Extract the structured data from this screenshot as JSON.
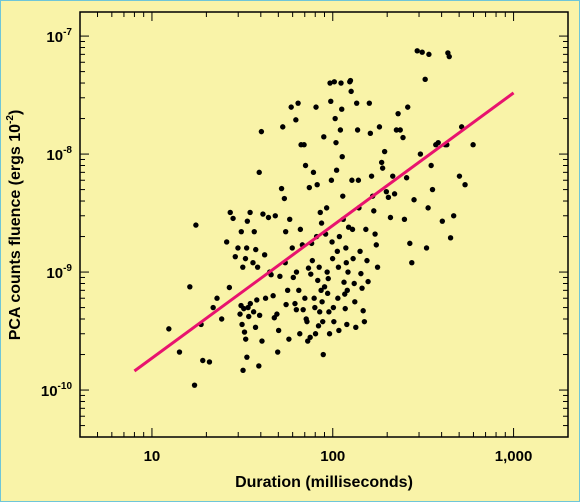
{
  "chart_data": {
    "type": "scatter",
    "x_scale": "log",
    "y_scale": "log",
    "xlim": [
      4,
      2000
    ],
    "ylim": [
      4e-11,
      1.6e-07
    ],
    "xlabel": "Duration (milliseconds)",
    "ylabel_main": "PCA counts fluence (ergs 10",
    "ylabel_sup": "-2",
    "ylabel_tail": ")",
    "x_ticks": [
      {
        "value": 10,
        "label": "10"
      },
      {
        "value": 100,
        "label": "100"
      },
      {
        "value": 1000,
        "label": "1,000"
      }
    ],
    "y_ticks": [
      {
        "value": 1e-10,
        "base": "10",
        "exp": "-10"
      },
      {
        "value": 1e-09,
        "base": "10",
        "exp": "-9"
      },
      {
        "value": 1e-08,
        "base": "10",
        "exp": "-8"
      },
      {
        "value": 1e-07,
        "base": "10",
        "exp": "-7"
      }
    ],
    "grid": false,
    "colors": {
      "background": "#f9f3a8",
      "points": "#000000",
      "fit_line": "#e8136e",
      "frame": "#6fc6d8"
    },
    "fit_line": {
      "x": [
        8,
        1000
      ],
      "y": [
        1.45e-10,
        3.3e-08
      ]
    },
    "points": [
      [
        17.2,
        1.1e-10
      ],
      [
        14.2,
        2.1e-10
      ],
      [
        12.4,
        3.3e-10
      ],
      [
        16.2,
        7.5e-10
      ],
      [
        17.5,
        2.5e-09
      ],
      [
        19.1,
        1.78e-10
      ],
      [
        20.8,
        1.73e-10
      ],
      [
        21.8,
        5e-10
      ],
      [
        18.7,
        3.6e-10
      ],
      [
        22.9,
        6e-10
      ],
      [
        24.3,
        4e-10
      ],
      [
        25.9,
        1.8e-09
      ],
      [
        27.1,
        3.2e-09
      ],
      [
        28.9,
        1.35e-09
      ],
      [
        26.8,
        7.4e-10
      ],
      [
        28.1,
        2.85e-09
      ],
      [
        29.9,
        1.6e-09
      ],
      [
        31.2,
        2.2e-09
      ],
      [
        32.9,
        1.3e-09
      ],
      [
        31.8,
        1.1e-09
      ],
      [
        33.4,
        1.6e-09
      ],
      [
        33.7,
        2.7e-09
      ],
      [
        34.9,
        3.2e-09
      ],
      [
        30.7,
        4.4e-10
      ],
      [
        31.5,
        3.6e-10
      ],
      [
        32.2,
        4.9e-10
      ],
      [
        33.0,
        2.7e-10
      ],
      [
        34.3,
        4.2e-10
      ],
      [
        35.0,
        5.4e-10
      ],
      [
        31.1,
        5.2e-10
      ],
      [
        32.5,
        3.1e-10
      ],
      [
        33.5,
        1.9e-10
      ],
      [
        31.9,
        1.47e-10
      ],
      [
        34.0,
        5e-10
      ],
      [
        36.2,
        1.2e-09
      ],
      [
        37.5,
        1.55e-09
      ],
      [
        36.8,
        2.2e-09
      ],
      [
        38.4,
        1.1e-09
      ],
      [
        39.2,
        7e-09
      ],
      [
        39.0,
        1.6e-10
      ],
      [
        40.3,
        1.55e-08
      ],
      [
        41.1,
        3.1e-09
      ],
      [
        42.0,
        1.4e-09
      ],
      [
        36.5,
        4.6e-10
      ],
      [
        37.4,
        3.4e-10
      ],
      [
        38.0,
        5.8e-10
      ],
      [
        39.4,
        4.3e-10
      ],
      [
        40.6,
        2.6e-10
      ],
      [
        42.5,
        6e-10
      ],
      [
        44.1,
        2.9e-09
      ],
      [
        45.6,
        9.5e-10
      ],
      [
        44.8,
        1e-09
      ],
      [
        46.8,
        6.3e-10
      ],
      [
        48.1,
        3e-09
      ],
      [
        49.1,
        4.4e-10
      ],
      [
        47.5,
        4.1e-10
      ],
      [
        50.2,
        3.2e-10
      ],
      [
        51.0,
        9.2e-10
      ],
      [
        49.6,
        2.1e-10
      ],
      [
        52.9,
        1.7e-08
      ],
      [
        52.1,
        5.1e-09
      ],
      [
        54.0,
        4.2e-09
      ],
      [
        54.9,
        2.2e-09
      ],
      [
        54.6,
        1.2e-09
      ],
      [
        56.3,
        7e-10
      ],
      [
        57.2,
        2.7e-10
      ],
      [
        55.2,
        5.3e-10
      ],
      [
        58.9,
        2.5e-08
      ],
      [
        57.8,
        2.8e-09
      ],
      [
        59.7,
        1.6e-09
      ],
      [
        60.5,
        9e-10
      ],
      [
        61.8,
        5.4e-10
      ],
      [
        62.5,
        1.95e-08
      ],
      [
        62.9,
        4.8e-10
      ],
      [
        64.3,
        2.7e-08
      ],
      [
        63.0,
        1e-09
      ],
      [
        64.9,
        7e-10
      ],
      [
        65.7,
        3e-10
      ],
      [
        66.8,
        1.2e-08
      ],
      [
        66.2,
        2.3e-09
      ],
      [
        67.9,
        1.7e-09
      ],
      [
        68.6,
        4.8e-10
      ],
      [
        69.4,
        1.2e-08
      ],
      [
        70.1,
        6e-10
      ],
      [
        70.7,
        8e-09
      ],
      [
        71.3,
        4e-10
      ],
      [
        72.0,
        3.8e-10
      ],
      [
        72.7,
        2.6e-10
      ],
      [
        73.4,
        1.08e-09
      ],
      [
        74.2,
        5.2e-09
      ],
      [
        75.0,
        2.8e-10
      ],
      [
        75.6,
        9.6e-10
      ],
      [
        76.4,
        1.75e-09
      ],
      [
        77.1,
        1.25e-09
      ],
      [
        78.2,
        7e-09
      ],
      [
        78.9,
        6e-10
      ],
      [
        79.6,
        5e-10
      ],
      [
        80.3,
        3e-10
      ],
      [
        80.8,
        2.5e-08
      ],
      [
        81.4,
        2e-09
      ],
      [
        82.0,
        5.5e-09
      ],
      [
        82.6,
        8.5e-10
      ],
      [
        83.4,
        3.5e-10
      ],
      [
        84.1,
        1.1e-09
      ],
      [
        84.7,
        4.6e-10
      ],
      [
        85.3,
        3.2e-09
      ],
      [
        86.2,
        7e-10
      ],
      [
        86.7,
        2.6e-09
      ],
      [
        87.3,
        5.6e-10
      ],
      [
        88.0,
        3.8e-10
      ],
      [
        88.6,
        2e-10
      ],
      [
        89.2,
        1.4e-08
      ],
      [
        90.1,
        7.5e-10
      ],
      [
        91.3,
        2.1e-09
      ],
      [
        92.5,
        3.5e-09
      ],
      [
        93.1,
        1e-09
      ],
      [
        93.7,
        6.6e-10
      ],
      [
        94.4,
        8.8e-10
      ],
      [
        95.2,
        4.6e-10
      ],
      [
        96.0,
        3e-10
      ],
      [
        96.6,
        4e-08
      ],
      [
        97.5,
        2.8e-08
      ],
      [
        98.3,
        6e-09
      ],
      [
        99.1,
        1.8e-09
      ],
      [
        99.8,
        1.3e-09
      ],
      [
        100.8,
        5e-10
      ],
      [
        101.4,
        3.8e-10
      ],
      [
        102.0,
        4.1e-08
      ],
      [
        103.1,
        2e-08
      ],
      [
        104.2,
        1.25e-08
      ],
      [
        105.0,
        7.3e-09
      ],
      [
        106.0,
        1.5e-09
      ],
      [
        106.7,
        6e-10
      ],
      [
        107.5,
        1.1e-09
      ],
      [
        108.1,
        3.2e-10
      ],
      [
        108.8,
        2e-09
      ],
      [
        110.2,
        1.6e-08
      ],
      [
        111.1,
        4e-08
      ],
      [
        112.1,
        2.4e-08
      ],
      [
        112.8,
        9.5e-09
      ],
      [
        113.6,
        4.4e-09
      ],
      [
        114.3,
        2.8e-09
      ],
      [
        115.4,
        8.2e-10
      ],
      [
        116.5,
        6.5e-10
      ],
      [
        117.2,
        4.9e-10
      ],
      [
        118.1,
        1.6e-09
      ],
      [
        118.8,
        1.2e-09
      ],
      [
        119.6,
        3.6e-10
      ],
      [
        120.3,
        7e-10
      ],
      [
        121.4,
        1e-09
      ],
      [
        122.4,
        2.4e-09
      ],
      [
        124.2,
        4.1e-08
      ],
      [
        125.3,
        4.2e-08
      ],
      [
        126.4,
        3.4e-08
      ],
      [
        127.6,
        6e-09
      ],
      [
        128.6,
        2.3e-09
      ],
      [
        129.6,
        1.3e-09
      ],
      [
        131.4,
        8e-10
      ],
      [
        132.4,
        5.6e-10
      ],
      [
        134.1,
        3.4e-10
      ],
      [
        135.6,
        2.7e-08
      ],
      [
        137.2,
        1.6e-08
      ],
      [
        138.6,
        6e-09
      ],
      [
        139.6,
        3.5e-09
      ],
      [
        141.6,
        1.5e-09
      ],
      [
        143.1,
        9.7e-10
      ],
      [
        145.2,
        7.3e-10
      ],
      [
        147.3,
        4.7e-10
      ],
      [
        149.6,
        3.8e-10
      ],
      [
        152.4,
        2.3e-09
      ],
      [
        154.6,
        1.25e-09
      ],
      [
        156.8,
        8.3e-10
      ],
      [
        159.3,
        2.7e-08
      ],
      [
        161.4,
        1.5e-08
      ],
      [
        163.9,
        6.5e-09
      ],
      [
        166.2,
        4.4e-09
      ],
      [
        168.6,
        3.3e-09
      ],
      [
        171.4,
        2.1e-09
      ],
      [
        174.1,
        1.7e-09
      ],
      [
        176.9,
        1.1e-09
      ],
      [
        181.2,
        1.7e-08
      ],
      [
        186.4,
        8.5e-09
      ],
      [
        188.7,
        7.6e-09
      ],
      [
        193.6,
        1.05e-08
      ],
      [
        197.9,
        4.8e-09
      ],
      [
        203.1,
        4.3e-09
      ],
      [
        208.5,
        2.9e-09
      ],
      [
        214.6,
        6.5e-09
      ],
      [
        219.7,
        4.6e-09
      ],
      [
        224.9,
        1.6e-08
      ],
      [
        229.8,
        2.2e-08
      ],
      [
        236.2,
        1.6e-08
      ],
      [
        244.6,
        1.38e-08
      ],
      [
        249.1,
        2.8e-09
      ],
      [
        256.1,
        6.3e-09
      ],
      [
        259.8,
        2.5e-08
      ],
      [
        266.8,
        1.75e-09
      ],
      [
        273.6,
        1.2e-09
      ],
      [
        281.5,
        4.1e-09
      ],
      [
        293.2,
        7.5e-08
      ],
      [
        305.3,
        1e-08
      ],
      [
        312.3,
        7.3e-08
      ],
      [
        324.4,
        4.3e-08
      ],
      [
        330.1,
        1.6e-09
      ],
      [
        336.8,
        3.5e-09
      ],
      [
        340.2,
        7e-08
      ],
      [
        350.1,
        8e-09
      ],
      [
        356.1,
        5e-09
      ],
      [
        371.3,
        1.2e-08
      ],
      [
        383.1,
        1.25e-08
      ],
      [
        403.6,
        2.7e-09
      ],
      [
        419.5,
        1.2e-08
      ],
      [
        427.4,
        1.2e-08
      ],
      [
        433.2,
        7.2e-08
      ],
      [
        440.8,
        6.7e-08
      ],
      [
        448.3,
        1.95e-09
      ],
      [
        466.4,
        3e-09
      ],
      [
        501.9,
        6.5e-09
      ],
      [
        516.3,
        1.7e-08
      ],
      [
        539.1,
        5.5e-09
      ],
      [
        597.3,
        1.2e-08
      ]
    ]
  }
}
